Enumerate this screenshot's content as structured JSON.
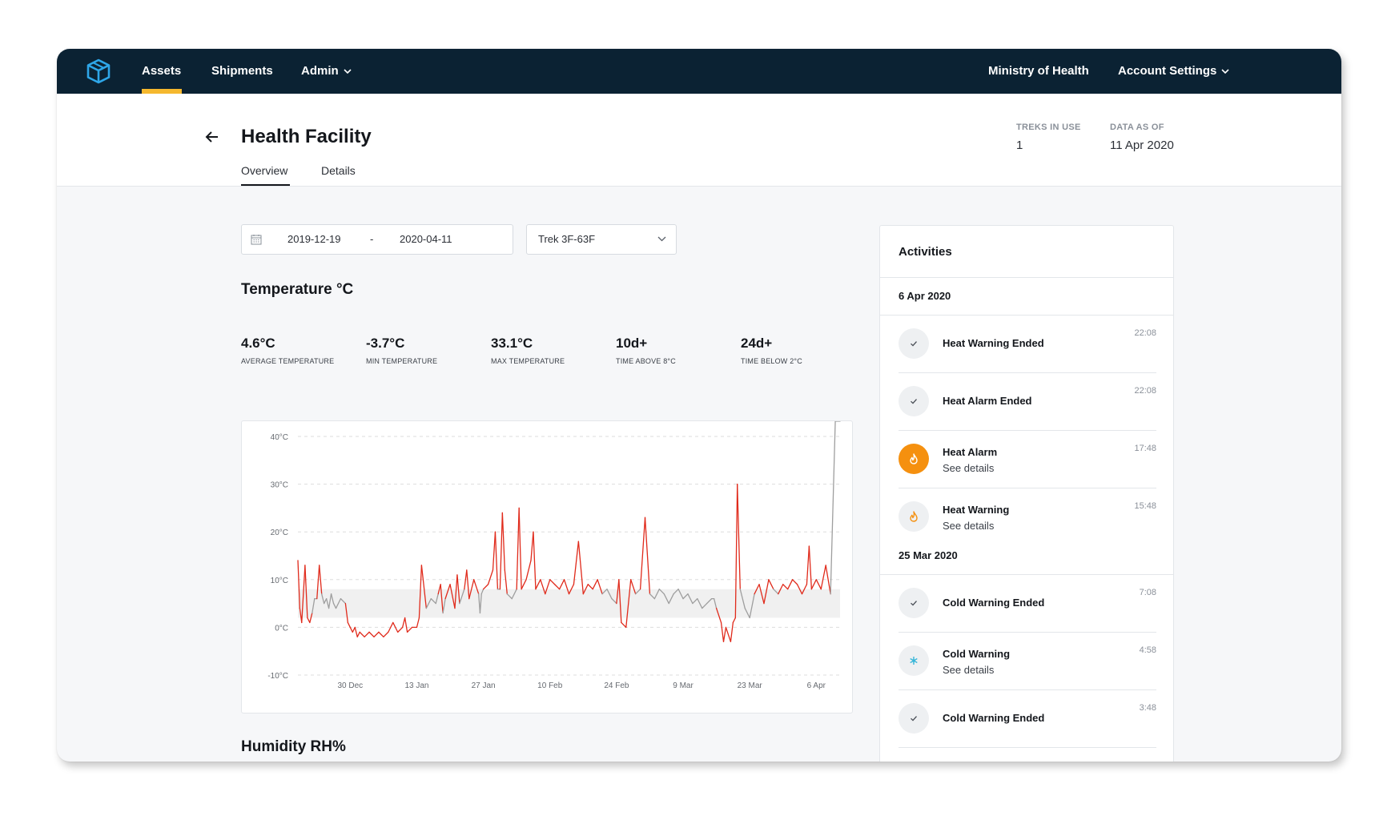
{
  "nav": {
    "items": [
      {
        "label": "Assets",
        "active": true
      },
      {
        "label": "Shipments"
      },
      {
        "label": "Admin"
      }
    ],
    "organization": "Ministry of Health",
    "account": "Account Settings"
  },
  "header": {
    "title": "Health Facility",
    "tabs": [
      {
        "label": "Overview",
        "active": true
      },
      {
        "label": "Details"
      }
    ],
    "treks_label": "TREKS IN USE",
    "treks_value": "1",
    "data_label": "DATA AS OF",
    "data_value": "11 Apr 2020"
  },
  "filters": {
    "date_from": "2019-12-19",
    "date_separator": "-",
    "date_to": "2020-04-11",
    "trek": "Trek 3F-63F"
  },
  "temperature": {
    "title": "Temperature °C",
    "stats": [
      {
        "value": "4.6°C",
        "label": "AVERAGE TEMPERATURE"
      },
      {
        "value": "-3.7°C",
        "label": "MIN TEMPERATURE"
      },
      {
        "value": "33.1°C",
        "label": "MAX TEMPERATURE"
      },
      {
        "value": "10d+",
        "label": "TIME ABOVE 8°C"
      },
      {
        "value": "24d+",
        "label": "TIME BELOW 2°C"
      }
    ]
  },
  "humidity": {
    "title": "Humidity RH%"
  },
  "chart_data": {
    "type": "line",
    "title": "",
    "xlabel": "",
    "ylabel": "",
    "ylim": [
      -10,
      40
    ],
    "y_ticks": [
      "40°C",
      "30°C",
      "20°C",
      "10°C",
      "0°C",
      "-10°C"
    ],
    "y_tick_values": [
      40,
      30,
      20,
      10,
      0,
      -10
    ],
    "x_ticks": [
      "30 Dec",
      "13 Jan",
      "27 Jan",
      "10 Feb",
      "24 Feb",
      "9 Mar",
      "23 Mar",
      "6 Apr"
    ],
    "x_tick_days": [
      11,
      25,
      39,
      53,
      67,
      81,
      95,
      109
    ],
    "x_range_days": [
      0,
      114
    ],
    "safe_range": [
      2,
      8
    ],
    "grid": true,
    "colors": {
      "in_range": "#9e9e9e",
      "out_of_range": "#e02a1b",
      "safe_band": "#f0f0f0"
    },
    "series": [
      {
        "day": [
          0,
          0.4,
          0.8,
          1.5,
          2,
          2.5,
          3,
          3.5,
          4,
          4.5,
          5,
          5.5,
          6,
          6.5,
          7,
          7.5,
          8,
          9,
          10,
          10.5,
          11,
          11.5,
          12,
          12.5,
          13,
          14,
          15,
          16,
          17,
          18,
          19,
          20,
          21,
          22,
          22.5,
          23,
          24,
          25,
          25.5,
          26,
          27,
          28,
          29,
          29.5,
          30,
          30.5,
          31,
          32,
          33,
          33.5,
          34,
          35,
          35.5,
          36,
          37,
          38,
          38.3,
          38.6,
          39,
          40,
          41,
          41.5,
          42,
          42.5,
          43,
          43.5,
          44,
          45,
          46,
          46.5,
          47,
          48,
          49,
          49.5,
          50,
          51,
          52,
          53,
          54,
          55,
          56,
          57,
          58,
          59,
          60,
          61,
          62,
          63,
          64,
          65,
          66,
          67,
          67.5,
          68,
          69,
          70,
          71,
          72,
          73,
          74,
          75,
          76,
          77,
          78,
          79,
          80,
          81,
          82,
          83,
          84,
          85,
          86,
          87,
          87.5,
          88,
          89,
          89.5,
          90,
          91,
          91.5,
          92,
          92.4,
          93,
          94,
          95,
          96,
          97,
          98,
          99,
          100,
          101,
          102,
          103,
          104,
          105,
          106,
          107,
          107.5,
          108,
          109,
          110,
          111,
          112,
          113,
          114
        ],
        "temp": [
          14,
          4,
          1,
          13,
          2,
          1,
          3,
          6,
          6,
          13,
          7,
          5,
          6,
          4,
          7,
          5,
          4,
          6,
          5,
          1,
          0,
          -1,
          0,
          -2,
          -1,
          -2,
          -1,
          -2,
          -1,
          -2,
          -1,
          1,
          -1,
          0,
          2,
          -1,
          0,
          0,
          2,
          13,
          4,
          6,
          5,
          7,
          9,
          3,
          6,
          9,
          4,
          11,
          5,
          8,
          12,
          6,
          10,
          7,
          3,
          7,
          8,
          9,
          12,
          20,
          8,
          8,
          24,
          12,
          7,
          6,
          8,
          25,
          8,
          10,
          14,
          20,
          8,
          10,
          7,
          10,
          9,
          8,
          10,
          7,
          9,
          18,
          7,
          9,
          8,
          10,
          7,
          8,
          6,
          5,
          10,
          1,
          0,
          10,
          7,
          8,
          23,
          7,
          6,
          8,
          7,
          5,
          7,
          8,
          6,
          7,
          5,
          6,
          4,
          5,
          6,
          6,
          4,
          1,
          -3,
          0,
          -3,
          1,
          2,
          30,
          8,
          4,
          2,
          7,
          9,
          5,
          10,
          8,
          7,
          9,
          8,
          10,
          9,
          7,
          9,
          17,
          8,
          10,
          8,
          13,
          7
        ]
      }
    ]
  },
  "activities": {
    "title": "Activities",
    "groups": [
      {
        "date": "6 Apr 2020",
        "items": [
          {
            "title": "Heat Warning Ended",
            "time": "22:08",
            "type": "check"
          },
          {
            "title": "Heat Alarm Ended",
            "time": "22:08",
            "type": "check"
          },
          {
            "title": "Heat Alarm",
            "link": "See details",
            "time": "17:48",
            "type": "heat-alarm"
          },
          {
            "title": "Heat Warning",
            "link": "See details",
            "time": "15:48",
            "type": "heat-warning"
          }
        ]
      },
      {
        "date": "25 Mar 2020",
        "items": [
          {
            "title": "Cold Warning Ended",
            "time": "7:08",
            "type": "check"
          },
          {
            "title": "Cold Warning",
            "link": "See details",
            "time": "4:58",
            "type": "cold-warning"
          },
          {
            "title": "Cold Warning Ended",
            "time": "3:48",
            "type": "check"
          }
        ]
      }
    ]
  }
}
